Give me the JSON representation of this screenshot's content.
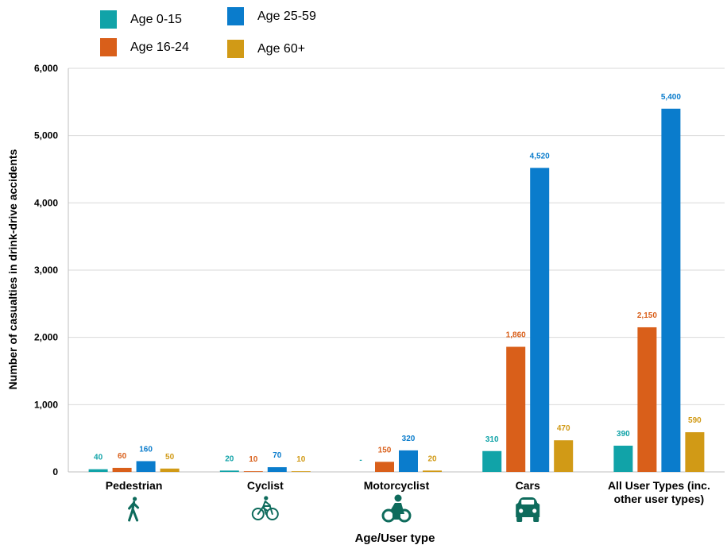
{
  "chart_data": {
    "type": "bar",
    "title": "",
    "xlabel": "Age/User type",
    "ylabel": "Number of casualties in drink-drive accidents",
    "ylim": [
      0,
      6000
    ],
    "yticks": [
      "0",
      "1,000",
      "2,000",
      "3,000",
      "4,000",
      "5,000",
      "6,000"
    ],
    "grid": true,
    "legend_position": "top-left",
    "categories": [
      {
        "label_lines": [
          "Pedestrian"
        ],
        "icon": "pedestrian-icon"
      },
      {
        "label_lines": [
          "Cyclist"
        ],
        "icon": "cyclist-icon"
      },
      {
        "label_lines": [
          "Motorcyclist"
        ],
        "icon": "motorcyclist-icon"
      },
      {
        "label_lines": [
          "Cars"
        ],
        "icon": "car-icon"
      },
      {
        "label_lines": [
          "All User Types (inc.",
          "other user types)"
        ],
        "icon": ""
      }
    ],
    "series": [
      {
        "name": "Age 0-15",
        "color": "#11a3a8",
        "values": [
          40,
          20,
          null,
          310,
          390
        ],
        "labels": [
          "40",
          "20",
          "-",
          "310",
          "390"
        ]
      },
      {
        "name": "Age 16-24",
        "color": "#d95f1a",
        "values": [
          60,
          10,
          150,
          1860,
          2150
        ],
        "labels": [
          "60",
          "10",
          "150",
          "1,860",
          "2,150"
        ]
      },
      {
        "name": "Age 25-59",
        "color": "#0a7ccc",
        "values": [
          160,
          70,
          320,
          4520,
          5400
        ],
        "labels": [
          "160",
          "70",
          "320",
          "4,520",
          "5,400"
        ]
      },
      {
        "name": "Age 60+",
        "color": "#d19a16",
        "values": [
          50,
          10,
          20,
          470,
          590
        ],
        "labels": [
          "50",
          "10",
          "20",
          "470",
          "590"
        ]
      }
    ],
    "icon_color": "#0e6b5c"
  }
}
